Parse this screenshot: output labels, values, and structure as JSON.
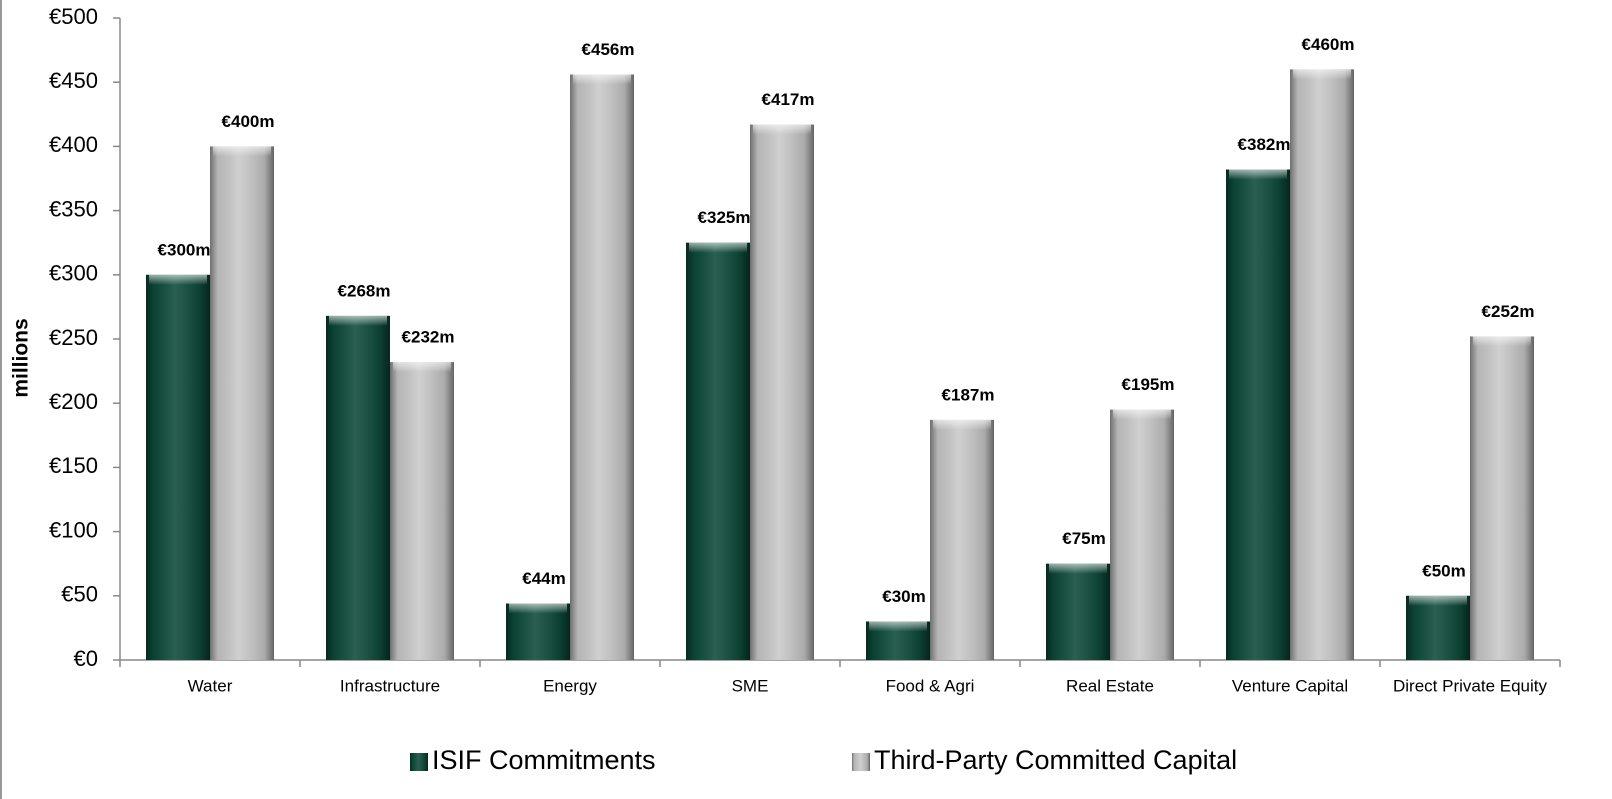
{
  "chart_data": {
    "type": "bar",
    "y_label": "millions",
    "categories": [
      "Water",
      "Infrastructure",
      "Energy",
      "SME",
      "Food & Agri",
      "Real Estate",
      "Venture Capital",
      "Direct Private Equity"
    ],
    "series": [
      {
        "name": "ISIF Commitments",
        "color": "#0d4a39",
        "values": [
          300,
          268,
          44,
          325,
          30,
          75,
          382,
          50
        ],
        "value_labels": [
          "€300m",
          "€268m",
          "€44m",
          "€325m",
          "€30m",
          "€75m",
          "€382m",
          "€50m"
        ]
      },
      {
        "name": "Third-Party Committed Capital",
        "color": "#c9c9c9",
        "values": [
          400,
          232,
          456,
          417,
          187,
          195,
          460,
          252
        ],
        "value_labels": [
          "€400m",
          "€232m",
          "€456m",
          "€417m",
          "€187m",
          "€195m",
          "€460m",
          "€252m"
        ]
      }
    ],
    "ylim": [
      0,
      500
    ],
    "yticks": [
      {
        "value": 0,
        "label": "€0"
      },
      {
        "value": 50,
        "label": "€50"
      },
      {
        "value": 100,
        "label": "€100"
      },
      {
        "value": 150,
        "label": "€150"
      },
      {
        "value": 200,
        "label": "€200"
      },
      {
        "value": 250,
        "label": "€250"
      },
      {
        "value": 300,
        "label": "€300"
      },
      {
        "value": 350,
        "label": "€350"
      },
      {
        "value": 400,
        "label": "€400"
      },
      {
        "value": 450,
        "label": "€450"
      },
      {
        "value": 500,
        "label": "€500"
      }
    ],
    "grid": false,
    "legend": "bottom"
  }
}
